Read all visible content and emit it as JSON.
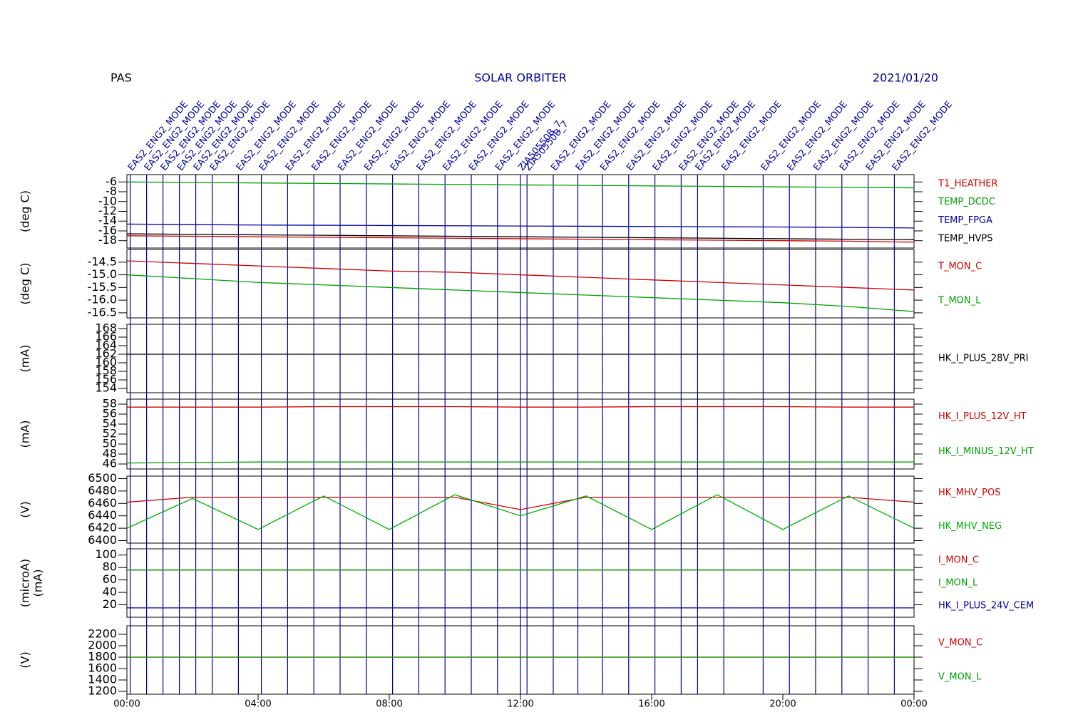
{
  "chart_data": {
    "type": "line",
    "title": "PAS",
    "subtitle": "SOLAR ORBITER",
    "date": "2021/01/20",
    "xlim": [
      0,
      24
    ],
    "xticks": [
      {
        "value": 0,
        "label": "00:00"
      },
      {
        "value": 4,
        "label": "04:00"
      },
      {
        "value": 8,
        "label": "08:00"
      },
      {
        "value": 12,
        "label": "12:00"
      },
      {
        "value": 16,
        "label": "16:00"
      },
      {
        "value": 20,
        "label": "20:00"
      },
      {
        "value": 24,
        "label": "00:00"
      }
    ],
    "x": [
      0,
      2,
      4,
      6,
      8,
      10,
      12,
      14,
      16,
      18,
      20,
      22,
      24
    ],
    "events": [
      {
        "time": 0.1,
        "label": "EAS2_ENG2_MODE"
      },
      {
        "time": 0.6,
        "label": "EAS2_ENG2_MODE"
      },
      {
        "time": 1.1,
        "label": "EAS2_ENG2_MODE"
      },
      {
        "time": 1.6,
        "label": "EAS2_ENG2_MODE"
      },
      {
        "time": 2.1,
        "label": "EAS2_ENG2_MODE"
      },
      {
        "time": 2.6,
        "label": "EAS2_ENG2_MODE"
      },
      {
        "time": 3.4,
        "label": "EAS2_ENG2_MODE"
      },
      {
        "time": 4.1,
        "label": "EAS2_ENG2_MODE"
      },
      {
        "time": 4.9,
        "label": "EAS2_ENG2_MODE"
      },
      {
        "time": 5.7,
        "label": "EAS2_ENG2_MODE"
      },
      {
        "time": 6.5,
        "label": "EAS2_ENG2_MODE"
      },
      {
        "time": 7.3,
        "label": "EAS2_ENG2_MODE"
      },
      {
        "time": 8.1,
        "label": "EAS2_ENG2_MODE"
      },
      {
        "time": 8.9,
        "label": "EAS2_ENG2_MODE"
      },
      {
        "time": 9.7,
        "label": "EAS2_ENG2_MODE"
      },
      {
        "time": 10.5,
        "label": "EAS2_ENG2_MODE"
      },
      {
        "time": 11.3,
        "label": "EAS2_ENG2_MODE"
      },
      {
        "time": 12.0,
        "label": "ZIA50550B_7"
      },
      {
        "time": 12.2,
        "label": "ZIA50550B_7"
      },
      {
        "time": 13.0,
        "label": "EAS2_ENG2_MODE"
      },
      {
        "time": 13.75,
        "label": "EAS2_ENG2_MODE"
      },
      {
        "time": 14.5,
        "label": "EAS2_ENG2_MODE"
      },
      {
        "time": 15.3,
        "label": "EAS2_ENG2_MODE"
      },
      {
        "time": 16.1,
        "label": "EAS2_ENG2_MODE"
      },
      {
        "time": 16.9,
        "label": "EAS2_ENG2_MODE"
      },
      {
        "time": 17.4,
        "label": "EAS2_ENG2_MODE"
      },
      {
        "time": 18.2,
        "label": "EAS2_ENG2_MODE"
      },
      {
        "time": 19.4,
        "label": "EAS2_ENG2_MODE"
      },
      {
        "time": 20.2,
        "label": "EAS2_ENG2_MODE"
      },
      {
        "time": 21.0,
        "label": "EAS2_ENG2_MODE"
      },
      {
        "time": 21.8,
        "label": "EAS2_ENG2_MODE"
      },
      {
        "time": 22.6,
        "label": "EAS2_ENG2_MODE"
      },
      {
        "time": 23.4,
        "label": "EAS2_ENG2_MODE"
      }
    ],
    "panels": [
      {
        "ylabel": "(deg C)",
        "ylim": [
          -19.5,
          -4.5
        ],
        "yticks": [
          -6,
          -8,
          -10,
          -12,
          -14,
          -16,
          -18
        ],
        "series": [
          {
            "name": "T1_HEATHER",
            "color": "#d00000",
            "values": [
              -17.0,
              -17.1,
              -17.2,
              -17.3,
              -17.4,
              -17.5,
              -17.6,
              -17.7,
              -17.8,
              -17.9,
              -18.0,
              -18.1,
              -18.3
            ]
          },
          {
            "name": "TEMP_DCDC",
            "color": "#00a000",
            "values": [
              -6.0,
              -6.1,
              -6.2,
              -6.3,
              -6.4,
              -6.5,
              -6.6,
              -6.7,
              -6.8,
              -6.9,
              -7.0,
              -7.1,
              -7.2
            ]
          },
          {
            "name": "TEMP_FPGA",
            "color": "#0000a0",
            "values": [
              -14.6,
              -14.7,
              -14.8,
              -14.85,
              -14.9,
              -14.95,
              -15.0,
              -15.05,
              -15.1,
              -15.15,
              -15.2,
              -15.3,
              -15.4
            ]
          },
          {
            "name": "TEMP_HVPS",
            "color": "#000000",
            "values": [
              -16.6,
              -16.7,
              -16.8,
              -16.9,
              -17.0,
              -17.1,
              -17.2,
              -17.3,
              -17.4,
              -17.5,
              -17.6,
              -17.7,
              -17.8
            ]
          }
        ]
      },
      {
        "ylabel": "(deg C)",
        "ylim": [
          -16.7,
          -14.0
        ],
        "yticks": [
          -14.5,
          {
            "value": -15,
            "label": "-15.0"
          },
          -15.5,
          {
            "value": -16,
            "label": "-16.0"
          },
          -16.5
        ],
        "series": [
          {
            "name": "T_MON_C",
            "color": "#d00000",
            "values": [
              -14.45,
              -14.55,
              -14.65,
              -14.75,
              -14.85,
              -14.9,
              -15.0,
              -15.1,
              -15.2,
              -15.3,
              -15.4,
              -15.5,
              -15.6
            ]
          },
          {
            "name": "T_MON_L",
            "color": "#00a000",
            "values": [
              -15.0,
              -15.15,
              -15.3,
              -15.4,
              -15.5,
              -15.6,
              -15.7,
              -15.8,
              -15.9,
              -16.0,
              -16.1,
              -16.25,
              -16.45
            ]
          }
        ]
      },
      {
        "ylabel": "(mA)",
        "ylim": [
          153,
          169
        ],
        "yticks": [
          154,
          156,
          158,
          160,
          162,
          164,
          166,
          168
        ],
        "series": [
          {
            "name": "HK_I_PLUS_28V_PRI",
            "color": "#000000",
            "values": [
              162,
              162,
              162,
              162,
              162,
              162,
              162,
              162,
              162,
              162,
              162,
              162,
              162
            ]
          }
        ]
      },
      {
        "ylabel": "(mA)",
        "ylim": [
          45,
          59
        ],
        "yticks": [
          46,
          48,
          50,
          52,
          54,
          56,
          58
        ],
        "series": [
          {
            "name": "HK_I_PLUS_12V_HT",
            "color": "#d00000",
            "values": [
              57.4,
              57.4,
              57.4,
              57.5,
              57.5,
              57.5,
              57.4,
              57.4,
              57.5,
              57.5,
              57.5,
              57.4,
              57.4
            ]
          },
          {
            "name": "HK_I_MINUS_12V_HT",
            "color": "#00a000",
            "values": [
              46.2,
              46.3,
              46.4,
              46.4,
              46.4,
              46.4,
              46.4,
              46.4,
              46.4,
              46.4,
              46.4,
              46.4,
              46.4
            ]
          }
        ]
      },
      {
        "ylabel": "(V)",
        "ylim": [
          6396,
          6504
        ],
        "yticks": [
          6400,
          6420,
          6440,
          6460,
          6480,
          6500
        ],
        "series": [
          {
            "name": "HK_MHV_POS",
            "color": "#d00000",
            "values": [
              6462,
              6470,
              6470,
              6470,
              6470,
              6470,
              6450,
              6470,
              6470,
              6470,
              6470,
              6470,
              6462
            ]
          },
          {
            "name": "HK_MHV_NEG",
            "color": "#00b000",
            "values": [
              6420,
              6468,
              6418,
              6472,
              6418,
              6474,
              6440,
              6472,
              6418,
              6474,
              6418,
              6472,
              6420
            ]
          }
        ]
      },
      {
        "ylabel": "(microA)",
        "ylabel2": "(mA)",
        "ylim": [
          0,
          110
        ],
        "yticks": [
          20,
          40,
          60,
          80,
          100
        ],
        "series": [
          {
            "name": "I_MON_C",
            "color": "#d00000",
            "values": [
              76,
              76,
              76,
              76,
              76,
              76,
              76,
              76,
              76,
              76,
              76,
              76,
              76
            ]
          },
          {
            "name": "I_MON_L",
            "color": "#00a000",
            "values": [
              76,
              76,
              76,
              76,
              76,
              76,
              76,
              76,
              76,
              76,
              76,
              76,
              76
            ]
          },
          {
            "name": "HK_I_PLUS_24V_CEM",
            "color": "#0000a0",
            "values": [
              15,
              15,
              15,
              15,
              15,
              15,
              15,
              15,
              15,
              15,
              15,
              15,
              15
            ]
          }
        ]
      },
      {
        "ylabel": "(V)",
        "ylim": [
          1150,
          2350
        ],
        "yticks": [
          1200,
          1400,
          1600,
          1800,
          2000,
          2200
        ],
        "series": [
          {
            "name": "V_MON_C",
            "color": "#d00000",
            "values": [
              1800,
              1800,
              1800,
              1800,
              1800,
              1800,
              1800,
              1800,
              1800,
              1800,
              1800,
              1800,
              1800
            ]
          },
          {
            "name": "V_MON_L",
            "color": "#00a000",
            "values": [
              1800,
              1800,
              1800,
              1800,
              1800,
              1800,
              1800,
              1800,
              1800,
              1800,
              1800,
              1800,
              1800
            ]
          }
        ]
      }
    ]
  }
}
